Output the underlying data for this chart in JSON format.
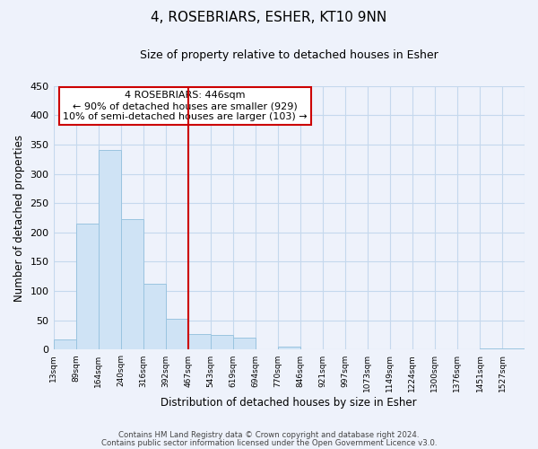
{
  "title": "4, ROSEBRIARS, ESHER, KT10 9NN",
  "subtitle": "Size of property relative to detached houses in Esher",
  "xlabel": "Distribution of detached houses by size in Esher",
  "ylabel": "Number of detached properties",
  "bar_color": "#cfe3f5",
  "bar_edge_color": "#9ac4e0",
  "grid_color": "#c5d8ed",
  "annotation_title": "4 ROSEBRIARS: 446sqm",
  "annotation_line1": "← 90% of detached houses are smaller (929)",
  "annotation_line2": "10% of semi-detached houses are larger (103) →",
  "vline_color": "#cc0000",
  "categories": [
    "13sqm",
    "89sqm",
    "164sqm",
    "240sqm",
    "316sqm",
    "392sqm",
    "467sqm",
    "543sqm",
    "619sqm",
    "694sqm",
    "770sqm",
    "846sqm",
    "921sqm",
    "997sqm",
    "1073sqm",
    "1149sqm",
    "1224sqm",
    "1300sqm",
    "1376sqm",
    "1451sqm",
    "1527sqm"
  ],
  "values": [
    18,
    215,
    340,
    222,
    113,
    53,
    26,
    25,
    20,
    0,
    6,
    0,
    0,
    0,
    0,
    0,
    0,
    0,
    0,
    2,
    2
  ],
  "vline_index": 6,
  "ylim": [
    0,
    450
  ],
  "yticks": [
    0,
    50,
    100,
    150,
    200,
    250,
    300,
    350,
    400,
    450
  ],
  "footer_line1": "Contains HM Land Registry data © Crown copyright and database right 2024.",
  "footer_line2": "Contains public sector information licensed under the Open Government Licence v3.0.",
  "figsize": [
    6.0,
    5.0
  ],
  "dpi": 100,
  "background_color": "#eef2fb"
}
